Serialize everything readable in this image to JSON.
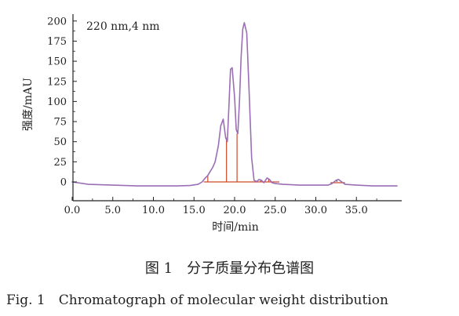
{
  "chart_data": {
    "type": "line",
    "annotation": "220 nm,4 nm",
    "xlabel": "时间/min",
    "ylabel": "强度/mAU",
    "xlim": [
      0,
      40
    ],
    "ylim": [
      -10,
      205
    ],
    "xticks": [
      0,
      5,
      10,
      15,
      20,
      25,
      30,
      35
    ],
    "xtick_labels": [
      "0.0",
      "5.0",
      "10.0",
      "15.0",
      "20.0",
      "25.0",
      "30.0",
      "35.0"
    ],
    "yticks": [
      0,
      25,
      50,
      75,
      100,
      125,
      150,
      175,
      200
    ],
    "ytick_labels": [
      "0",
      "25",
      "50",
      "75",
      "100",
      "125",
      "150",
      "175",
      "200"
    ],
    "grid": false,
    "series": [
      {
        "color": "#9a6fb5",
        "x": [
          0,
          2,
          5,
          8,
          11,
          13,
          14.5,
          15.5,
          16,
          16.4,
          16.7,
          17,
          17.3,
          17.6,
          18,
          18.3,
          18.6,
          18.9,
          19.1,
          19.3,
          19.5,
          19.7,
          20,
          20.2,
          20.4,
          20.6,
          20.8,
          21,
          21.2,
          21.5,
          21.8,
          22.1,
          22.4,
          22.7,
          23,
          23.3,
          23.6,
          24,
          24.3,
          24.6,
          25,
          26,
          28,
          30,
          31.5,
          32,
          32.5,
          32.8,
          33.2,
          33.6,
          35,
          37,
          40
        ],
        "y": [
          0,
          -3,
          -4,
          -5,
          -5,
          -5,
          -4.5,
          -3,
          0,
          5,
          8,
          13,
          18,
          25,
          45,
          70,
          78,
          55,
          50,
          95,
          140,
          142,
          105,
          65,
          60,
          100,
          155,
          190,
          198,
          185,
          110,
          30,
          2,
          0,
          3,
          2,
          -1,
          5,
          3,
          -1,
          -2,
          -3,
          -4,
          -4,
          -4,
          -2,
          2,
          3,
          0,
          -3,
          -4,
          -5,
          -5
        ]
      }
    ],
    "drop_lines": {
      "color": "#cf4a2a",
      "x": [
        16.7,
        19.0,
        20.3,
        22.6,
        23.2,
        24.2,
        32.6
      ],
      "y": [
        8,
        55,
        60,
        2,
        3,
        4,
        3
      ]
    }
  },
  "caption_cn": "图 1　分子质量分布色谱图",
  "caption_en": "Fig. 1　Chromatograph of molecular weight distribution"
}
